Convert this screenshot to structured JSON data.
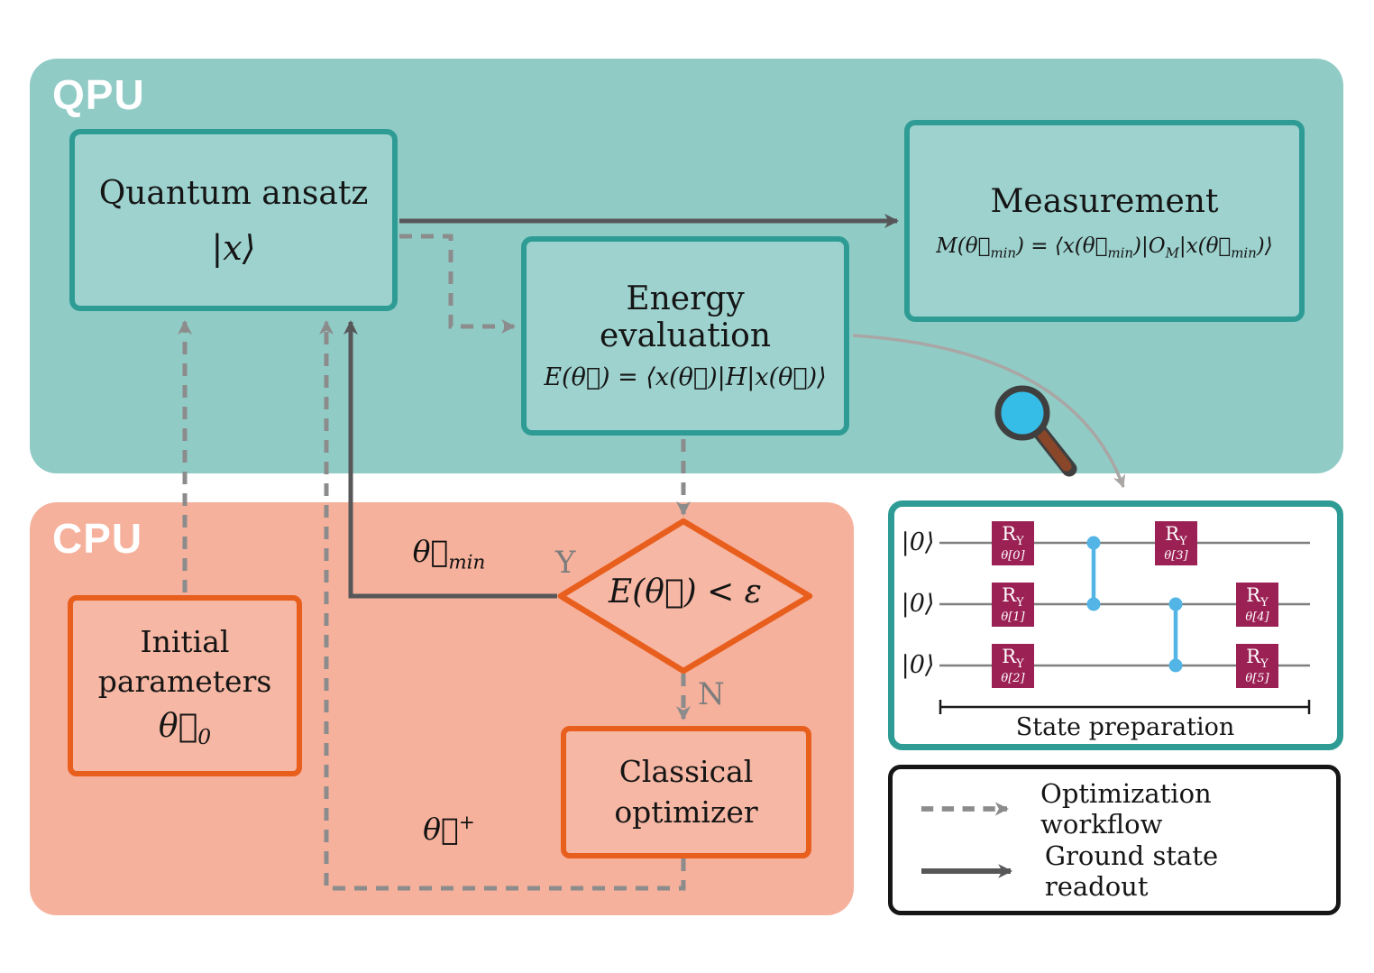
{
  "regions": {
    "qpu_label": "QPU",
    "cpu_label": "CPU"
  },
  "qpu": {
    "quantum_ansatz": {
      "title": "Quantum ansatz",
      "state": "|x⟩"
    },
    "energy_evaluation": {
      "title_line1": "Energy",
      "title_line2": "evaluation",
      "equation": "E(θ⃗) = ⟨x(θ⃗)|H|x(θ⃗)⟩"
    },
    "measurement": {
      "title": "Measurement",
      "equation_html": "M(θ⃗<sub>min</sub>) = ⟨x(θ⃗<sub>min</sub>)|O<sub>M</sub>|x(θ⃗<sub>min</sub>)⟩"
    }
  },
  "cpu": {
    "initial_parameters": {
      "line1": "Initial",
      "line2": "parameters",
      "symbol_html": "θ⃗<sub>0</sub>"
    },
    "decision": {
      "condition": "E(θ⃗) < ε",
      "yes_label": "Y",
      "no_label": "N"
    },
    "classical_optimizer": {
      "line1": "Classical",
      "line2": "optimizer"
    }
  },
  "flow_labels": {
    "theta_min_html": "θ⃗<sub>min</sub>",
    "theta_plus_html": "θ⃗<sup>+</sup>"
  },
  "circuit": {
    "qubit_labels": [
      "|0⟩",
      "|0⟩",
      "|0⟩"
    ],
    "gate_name_html": "R<sub>Y</sub>",
    "gates": [
      {
        "param": "θ[0]"
      },
      {
        "param": "θ[1]"
      },
      {
        "param": "θ[2]"
      },
      {
        "param": "θ[3]"
      },
      {
        "param": "θ[4]"
      },
      {
        "param": "θ[5]"
      }
    ],
    "caption": "State preparation"
  },
  "legend": {
    "items": [
      {
        "label": "Optimization workflow",
        "style": "dashed"
      },
      {
        "label": "Ground state readout",
        "style": "solid"
      }
    ]
  },
  "icons": {
    "magnifier": "magnifying-glass"
  },
  "colors": {
    "qpu_bg": "#90cbc6",
    "cpu_bg": "#f5b19c",
    "teal_border": "#2e9c95",
    "orange_border": "#e85e1d",
    "qpu_box_fill": "#9dd2ce",
    "cpu_box_fill": "#f6b7a4",
    "solid_arrow": "#57575a",
    "dashed_arrow": "#8c8c8c",
    "yn_label_gray": "#7d7d7d",
    "curve_arrow": "#a9a6a4",
    "gate_fill": "#9b2154",
    "cz_blue": "#52b5e6",
    "wire_gray": "#7f7f7f",
    "lens_blue": "#35bde8",
    "handle_brown": "#8a4628"
  }
}
